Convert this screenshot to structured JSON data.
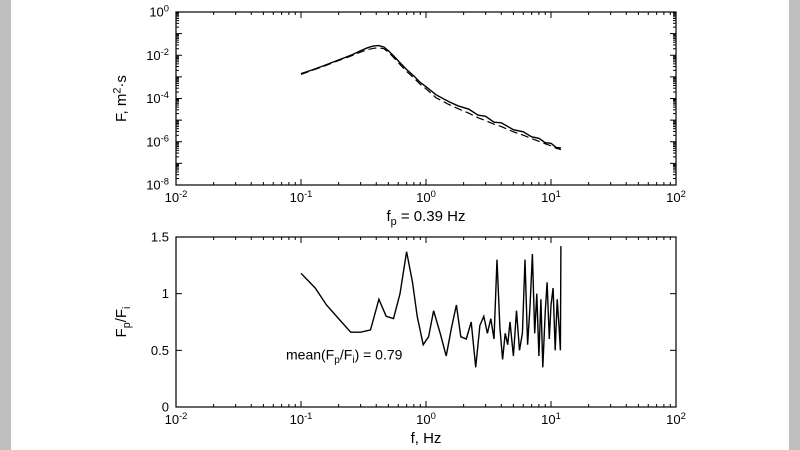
{
  "figure": {
    "background": "#ffffff",
    "letterbox_color": "#bfbfbf",
    "line_color": "#000000"
  },
  "chart_data": [
    {
      "name": "spectrum",
      "type": "line",
      "title": "",
      "xscale": "log",
      "yscale": "log",
      "xlim": [
        0.01,
        100
      ],
      "ylim": [
        1e-08,
        1
      ],
      "xlabel": "f_p = 0.39 Hz",
      "ylabel": "F, m^2·s",
      "grid": false,
      "legend": "none",
      "xticks": [
        {
          "v": 0.01,
          "label": "10^-2"
        },
        {
          "v": 0.1,
          "label": "10^-1"
        },
        {
          "v": 1,
          "label": "10^0"
        },
        {
          "v": 10,
          "label": "10^1"
        },
        {
          "v": 100,
          "label": "10^2"
        }
      ],
      "yticks": [
        {
          "v": 1,
          "label": "10^0"
        },
        {
          "v": 0.01,
          "label": "10^-2"
        },
        {
          "v": 0.0001,
          "label": "10^-4"
        },
        {
          "v": 1e-06,
          "label": "10^-6"
        },
        {
          "v": 1e-08,
          "label": "10^-8"
        }
      ],
      "series": [
        {
          "name": "solid",
          "style": "solid",
          "x": [
            0.1,
            0.12,
            0.15,
            0.18,
            0.22,
            0.26,
            0.3,
            0.34,
            0.38,
            0.42,
            0.46,
            0.5,
            0.55,
            0.6,
            0.7,
            0.8,
            0.9,
            1.0,
            1.2,
            1.5,
            1.8,
            2.2,
            2.6,
            3.0,
            3.5,
            4.0,
            5.0,
            6.0,
            7.0,
            8.0,
            9.0,
            10.0,
            11.0,
            12.0
          ],
          "y": [
            0.0014,
            0.002,
            0.0032,
            0.0048,
            0.0075,
            0.011,
            0.016,
            0.022,
            0.027,
            0.028,
            0.024,
            0.016,
            0.0095,
            0.0055,
            0.0022,
            0.0011,
            0.00055,
            0.00035,
            0.00015,
            7.5e-05,
            4.6e-05,
            3.2e-05,
            1.7e-05,
            1.5e-05,
            8e-06,
            7.5e-06,
            3.6e-06,
            2.9e-06,
            1.7e-06,
            1.45e-06,
            9e-07,
            8.5e-07,
            5.5e-07,
            5.2e-07
          ]
        },
        {
          "name": "dashed",
          "style": "dashed",
          "x": [
            0.1,
            0.12,
            0.15,
            0.18,
            0.22,
            0.26,
            0.3,
            0.34,
            0.38,
            0.42,
            0.46,
            0.5,
            0.55,
            0.6,
            0.7,
            0.8,
            0.9,
            1.0,
            1.2,
            1.5,
            1.8,
            2.2,
            2.6,
            3.0,
            3.5,
            4.0,
            5.0,
            6.0,
            7.0,
            8.0,
            9.0,
            10.0,
            11.0,
            12.0
          ],
          "y": [
            0.0013,
            0.0019,
            0.003,
            0.0045,
            0.007,
            0.01,
            0.014,
            0.018,
            0.021,
            0.022,
            0.02,
            0.014,
            0.008,
            0.0045,
            0.0018,
            0.0009,
            0.00045,
            0.00028,
            0.00011,
            5.5e-05,
            3.4e-05,
            2.1e-05,
            1.3e-05,
            9.5e-06,
            6.5e-06,
            5e-06,
            2.9e-06,
            2e-06,
            1.4e-06,
            1.05e-06,
            8e-07,
            6.5e-07,
            5e-07,
            4.4e-07
          ]
        }
      ]
    },
    {
      "name": "ratio",
      "type": "line",
      "title": "",
      "xscale": "log",
      "yscale": "linear",
      "xlim": [
        0.01,
        100
      ],
      "ylim": [
        0,
        1.5
      ],
      "xlabel": "f, Hz",
      "ylabel": "F_p/F_i",
      "grid": false,
      "legend": "none",
      "annotation": {
        "text": "mean(F_p/F_i) = 0.79",
        "fx": 0.22,
        "fy": 0.72
      },
      "xticks": [
        {
          "v": 0.01,
          "label": "10^-2"
        },
        {
          "v": 0.1,
          "label": "10^-1"
        },
        {
          "v": 1,
          "label": "10^0"
        },
        {
          "v": 10,
          "label": "10^1"
        },
        {
          "v": 100,
          "label": "10^2"
        }
      ],
      "yticks": [
        {
          "v": 0,
          "label": "0"
        },
        {
          "v": 0.5,
          "label": "0.5"
        },
        {
          "v": 1,
          "label": "1"
        },
        {
          "v": 1.5,
          "label": "1.5"
        }
      ],
      "series": [
        {
          "name": "ratio",
          "style": "solid",
          "x": [
            0.1,
            0.13,
            0.16,
            0.2,
            0.25,
            0.3,
            0.36,
            0.42,
            0.48,
            0.55,
            0.62,
            0.7,
            0.78,
            0.85,
            0.95,
            1.05,
            1.15,
            1.3,
            1.45,
            1.6,
            1.75,
            1.9,
            2.1,
            2.3,
            2.5,
            2.7,
            2.9,
            3.1,
            3.3,
            3.5,
            3.7,
            3.9,
            4.1,
            4.3,
            4.5,
            4.7,
            5.0,
            5.3,
            5.6,
            5.9,
            6.2,
            6.5,
            6.8,
            7.1,
            7.4,
            7.7,
            8.0,
            8.3,
            8.6,
            9.0,
            9.3,
            9.7,
            10.0,
            10.4,
            10.8,
            11.2,
            11.6,
            11.9,
            12.0
          ],
          "y": [
            1.18,
            1.05,
            0.9,
            0.78,
            0.66,
            0.66,
            0.68,
            0.95,
            0.8,
            0.78,
            1.0,
            1.37,
            1.1,
            0.8,
            0.55,
            0.62,
            0.85,
            0.65,
            0.45,
            0.7,
            0.9,
            0.62,
            0.6,
            0.75,
            0.35,
            0.72,
            0.8,
            0.65,
            0.78,
            0.6,
            1.3,
            0.7,
            0.42,
            0.65,
            0.55,
            0.75,
            0.45,
            0.85,
            0.5,
            0.65,
            1.3,
            0.55,
            0.9,
            1.35,
            0.65,
            1.0,
            0.45,
            0.95,
            0.35,
            0.85,
            1.1,
            0.6,
            0.9,
            1.05,
            0.5,
            0.95,
            0.7,
            0.5,
            1.42
          ]
        }
      ]
    }
  ]
}
